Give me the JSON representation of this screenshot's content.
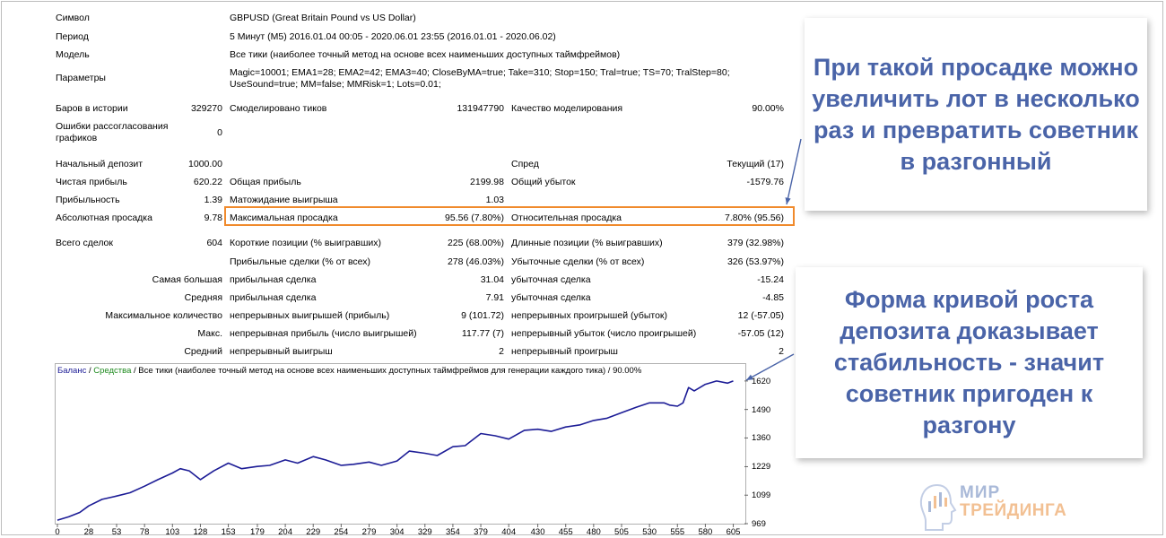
{
  "report": {
    "info": [
      {
        "label": "Символ",
        "value": "GBPUSD (Great Britain Pound vs US Dollar)"
      },
      {
        "label": "Период",
        "value": "5 Минут (M5) 2016.01.04 00:05 - 2020.06.01 23:55 (2016.01.01 - 2020.06.02)"
      },
      {
        "label": "Модель",
        "value": "Все тики (наиболее точный метод на основе всех наименьших доступных таймфреймов)"
      },
      {
        "label": "Параметры",
        "value": "Magic=10001; EMA1=28; EMA2=42; EMA3=40; CloseByMA=true; Take=310; Stop=150; Tral=true; TS=70; TralStep=80; UseSound=true; MM=false; MMRisk=1; Lots=0.01;"
      }
    ],
    "bars_label": "Баров в истории",
    "bars_value": "329270",
    "ticks_label": "Смоделировано тиков",
    "ticks_value": "131947790",
    "quality_label": "Качество моделирования",
    "quality_value": "90.00%",
    "errors_label": "Ошибки рассогласования графиков",
    "errors_value": "0",
    "deposit_label": "Начальный депозит",
    "deposit_value": "1000.00",
    "spread_label": "Спред",
    "spread_value": "Текущий (17)",
    "net_label": "Чистая прибыль",
    "net_value": "620.22",
    "gross_profit_label": "Общая прибыль",
    "gross_profit_value": "2199.98",
    "gross_loss_label": "Общий убыток",
    "gross_loss_value": "-1579.76",
    "pf_label": "Прибыльность",
    "pf_value": "1.39",
    "expect_label": "Матожидание выигрыша",
    "expect_value": "1.03",
    "abs_dd_label": "Абсолютная просадка",
    "abs_dd_value": "9.78",
    "max_dd_label": "Максимальная просадка",
    "max_dd_value": "95.56 (7.80%)",
    "rel_dd_label": "Относительная просадка",
    "rel_dd_value": "7.80% (95.56)",
    "trades_label": "Всего сделок",
    "trades_value": "604",
    "short_label": "Короткие позиции (% выигравших)",
    "short_value": "225 (68.00%)",
    "long_label": "Длинные позиции (% выигравших)",
    "long_value": "379 (32.98%)",
    "stats": [
      {
        "c1": "",
        "c2": "Прибыльные сделки (% от всех)",
        "v2": "278 (46.03%)",
        "c3": "Убыточные сделки (% от всех)",
        "v3": "326 (53.97%)"
      },
      {
        "c1": "Самая большая",
        "c2": "прибыльная сделка",
        "v2": "31.04",
        "c3": "убыточная сделка",
        "v3": "-15.24"
      },
      {
        "c1": "Средняя",
        "c2": "прибыльная сделка",
        "v2": "7.91",
        "c3": "убыточная сделка",
        "v3": "-4.85"
      },
      {
        "c1": "Максимальное количество",
        "c2": "непрерывных выигрышей (прибыль)",
        "v2": "9 (101.72)",
        "c3": "непрерывных проигрышей (убыток)",
        "v3": "12 (-57.05)"
      },
      {
        "c1": "Макс.",
        "c2": "непрерывная прибыль (число выигрышей)",
        "v2": "117.77 (7)",
        "c3": "непрерывный убыток (число проигрышей)",
        "v3": "-57.05 (12)"
      },
      {
        "c1": "Средний",
        "c2": "непрерывный выигрыш",
        "v2": "2",
        "c3": "непрерывный проигрыш",
        "v3": "2"
      }
    ]
  },
  "chart": {
    "legend_balance": "Баланс",
    "legend_sep": " / ",
    "legend_equity": "Средства",
    "legend_rest": " / Все тики (наиболее точный метод на основе всех наименьших доступных таймфреймов для генерации каждого тика) / 90.00%"
  },
  "callouts": {
    "top": "При такой просадке можно увеличить лот в несколько раз и превратить советник в разгонный",
    "bottom": "Форма кривой роста депозита доказывает стабильность - значит советник пригоден к разгону"
  },
  "logo": {
    "line1": "МИР",
    "line2": "ТРЕЙДИНГА"
  },
  "colors": {
    "accent": "#f08a2c",
    "callout_text": "#4a64a8",
    "balance_line": "#1c1c96",
    "equity_legend": "#1e8a1e",
    "balance_legend": "#1c1c96"
  },
  "chart_data": {
    "type": "line",
    "x_ticks": [
      0,
      28,
      53,
      78,
      103,
      128,
      153,
      179,
      204,
      229,
      254,
      279,
      304,
      329,
      354,
      379,
      404,
      430,
      455,
      480,
      505,
      530,
      555,
      580,
      605
    ],
    "y_ticks": [
      969,
      1099,
      1229,
      1360,
      1490,
      1620
    ],
    "xlim": [
      0,
      615
    ],
    "ylim": [
      969,
      1640
    ],
    "series": [
      {
        "name": "Баланс",
        "x": [
          0,
          10,
          20,
          28,
          40,
          53,
          65,
          78,
          90,
          103,
          110,
          118,
          128,
          140,
          153,
          165,
          179,
          190,
          204,
          215,
          229,
          240,
          254,
          265,
          279,
          290,
          304,
          315,
          329,
          340,
          354,
          365,
          379,
          392,
          404,
          418,
          430,
          442,
          455,
          468,
          480,
          492,
          505,
          518,
          530,
          543,
          548,
          555,
          560,
          565,
          570,
          580,
          590,
          600,
          605
        ],
        "y": [
          985,
          1000,
          1020,
          1050,
          1080,
          1095,
          1110,
          1140,
          1170,
          1200,
          1220,
          1210,
          1170,
          1210,
          1245,
          1220,
          1230,
          1235,
          1260,
          1245,
          1275,
          1260,
          1235,
          1240,
          1250,
          1235,
          1255,
          1300,
          1290,
          1280,
          1320,
          1325,
          1380,
          1370,
          1355,
          1395,
          1400,
          1390,
          1410,
          1420,
          1440,
          1450,
          1475,
          1500,
          1520,
          1520,
          1510,
          1505,
          1520,
          1590,
          1575,
          1605,
          1620,
          1610,
          1620
        ]
      }
    ]
  }
}
